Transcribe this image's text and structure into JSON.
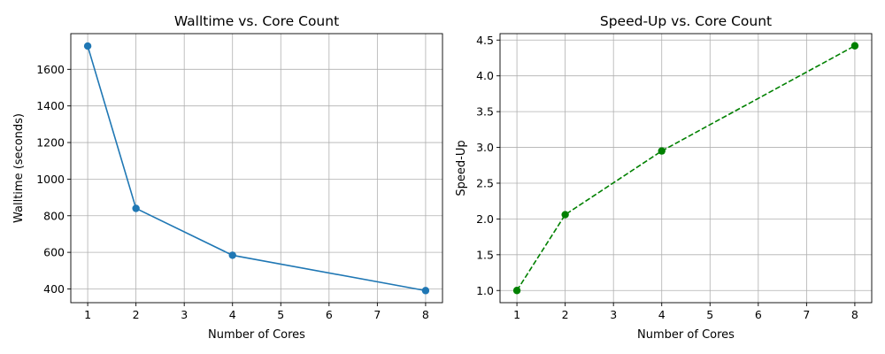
{
  "chart_data": [
    {
      "type": "line",
      "title": "Walltime vs. Core Count",
      "xlabel": "Number of Cores",
      "ylabel": "Walltime (seconds)",
      "xlim": [
        0.65,
        8.35
      ],
      "ylim": [
        325,
        1795
      ],
      "xticks": [
        1,
        2,
        3,
        4,
        5,
        6,
        7,
        8
      ],
      "yticks": [
        400,
        600,
        800,
        1000,
        1200,
        1400,
        1600
      ],
      "grid": true,
      "series": [
        {
          "x": [
            1,
            2,
            4,
            8
          ],
          "y": [
            1727,
            840,
            584,
            391
          ],
          "color": "#1f77b4",
          "line_style": "solid",
          "marker": "circle"
        }
      ]
    },
    {
      "type": "line",
      "title": "Speed-Up vs. Core Count",
      "xlabel": "Number of Cores",
      "ylabel": "Speed-Up",
      "xlim": [
        0.65,
        8.35
      ],
      "ylim": [
        0.83,
        4.59
      ],
      "xticks": [
        1,
        2,
        3,
        4,
        5,
        6,
        7,
        8
      ],
      "yticks": [
        "1.0",
        "1.5",
        "2.0",
        "2.5",
        "3.0",
        "3.5",
        "4.0",
        "4.5"
      ],
      "grid": true,
      "series": [
        {
          "x": [
            1,
            2,
            4,
            8
          ],
          "y": [
            1.0,
            2.06,
            2.95,
            4.42
          ],
          "color": "#008000",
          "line_style": "dashed",
          "marker": "circle"
        }
      ]
    }
  ]
}
